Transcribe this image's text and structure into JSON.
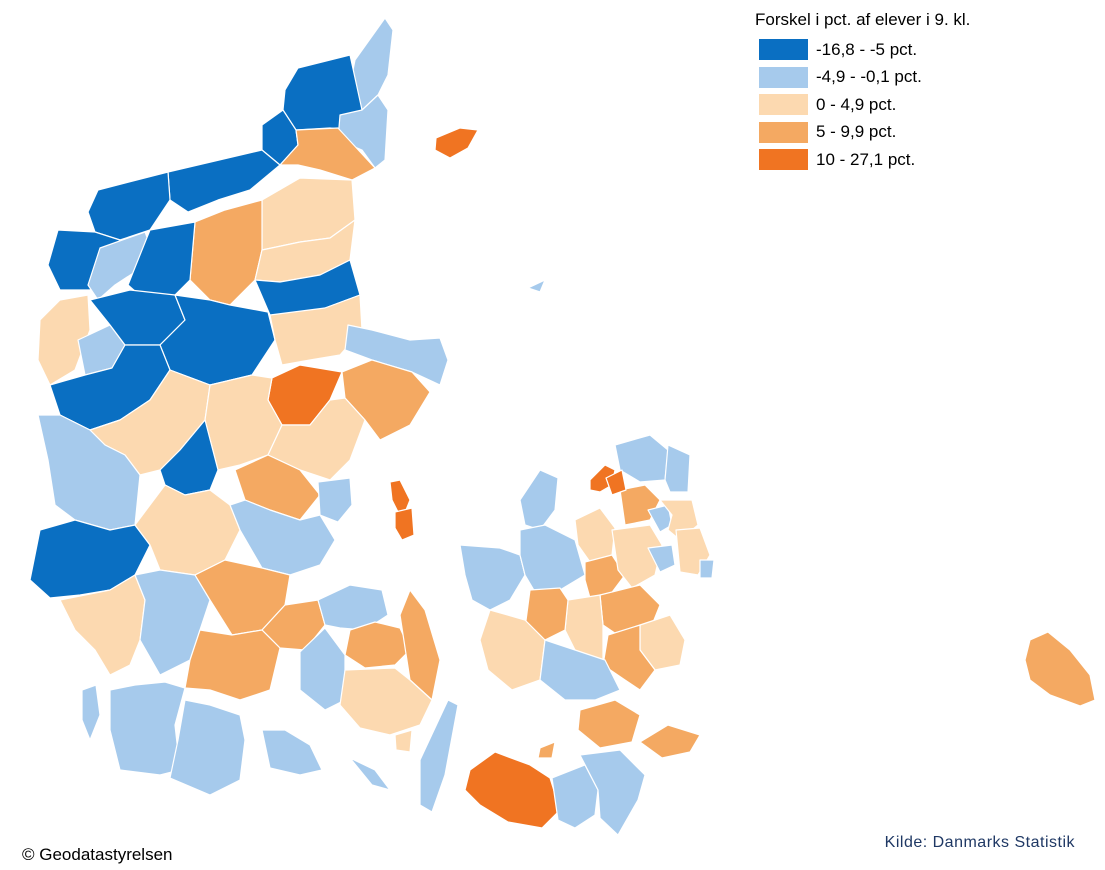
{
  "legend": {
    "title": "Forskel i pct. af elever i 9. kl.",
    "items": [
      {
        "label": "-16,8 - -5 pct.",
        "color": "#0a6fc2"
      },
      {
        "label": "-4,9 - -0,1 pct.",
        "color": "#a6caec"
      },
      {
        "label": "0 - 4,9 pct.",
        "color": "#fcd9b0"
      },
      {
        "label": "5 - 9,9 pct.",
        "color": "#f4a962"
      },
      {
        "label": "10 - 27,1 pct.",
        "color": "#f07422"
      }
    ]
  },
  "copyright": "© Geodatastyrelsen",
  "source": {
    "text": "Kilde: Danmarks Statistik",
    "color": "#1f3864"
  }
}
